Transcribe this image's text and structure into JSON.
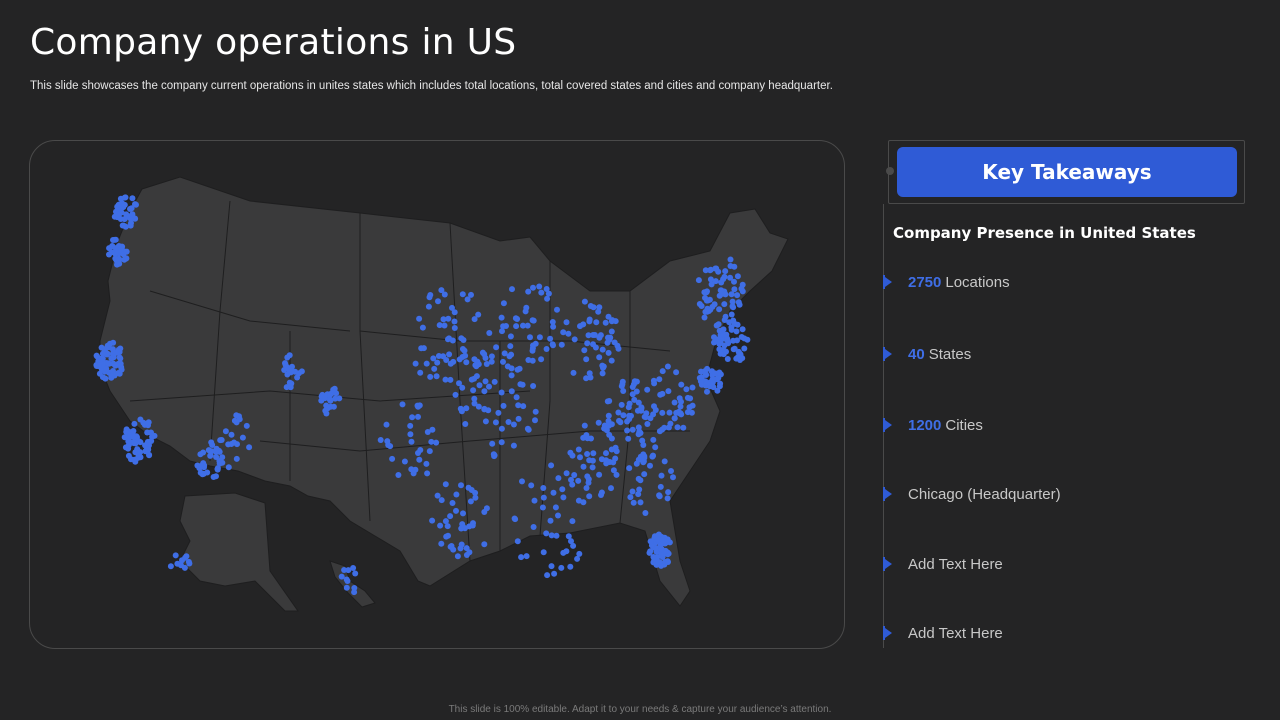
{
  "slide": {
    "title": "Company operations in US",
    "subtitle": "This slide showcases the company current operations in unites states which includes total locations, total covered states and cities and company headquarter.",
    "footer": "This slide is 100% editable. Adapt it to your needs & capture your audience’s attention."
  },
  "takeaways": {
    "button_label": "Key Takeaways",
    "heading": "Company Presence in United States",
    "items": [
      {
        "number": "2750",
        "text": "Locations"
      },
      {
        "number": "40",
        "text": "States"
      },
      {
        "number": "1200",
        "text": "Cities"
      },
      {
        "number": "",
        "text": "Chicago (Headquarter)"
      },
      {
        "number": "",
        "text": "Add Text Here"
      },
      {
        "number": "",
        "text": "Add Text Here"
      }
    ]
  },
  "colors": {
    "background": "#242425",
    "map_fill": "#3a3a3b",
    "marker": "#3f6ee6",
    "accent": "#2f5bd6"
  },
  "icons": {
    "map": "us-map-icon",
    "location": "location-dot-icon",
    "bullet": "arrow-marker-icon"
  }
}
